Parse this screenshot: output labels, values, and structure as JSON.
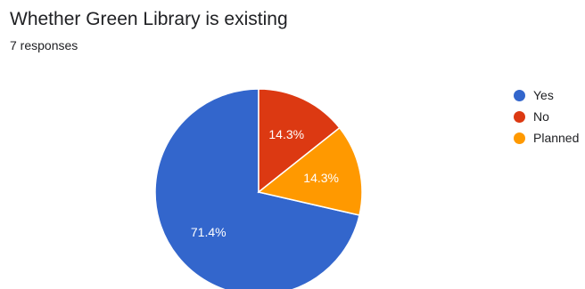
{
  "header": {
    "title": "Whether Green Library is existing",
    "responses": "7 responses"
  },
  "chart_data": {
    "type": "pie",
    "title": "Whether Green Library is existing",
    "subtitle": "7 responses",
    "legend_position": "right",
    "slices": [
      {
        "label": "Yes",
        "count": 5,
        "percent": 71.4,
        "percent_label": "71.4%",
        "color": "#3366cc"
      },
      {
        "label": "No",
        "count": 1,
        "percent": 14.3,
        "percent_label": "14.3%",
        "color": "#dc3912"
      },
      {
        "label": "Planned",
        "count": 1,
        "percent": 14.3,
        "percent_label": "14.3%",
        "color": "#ff9900"
      }
    ]
  }
}
